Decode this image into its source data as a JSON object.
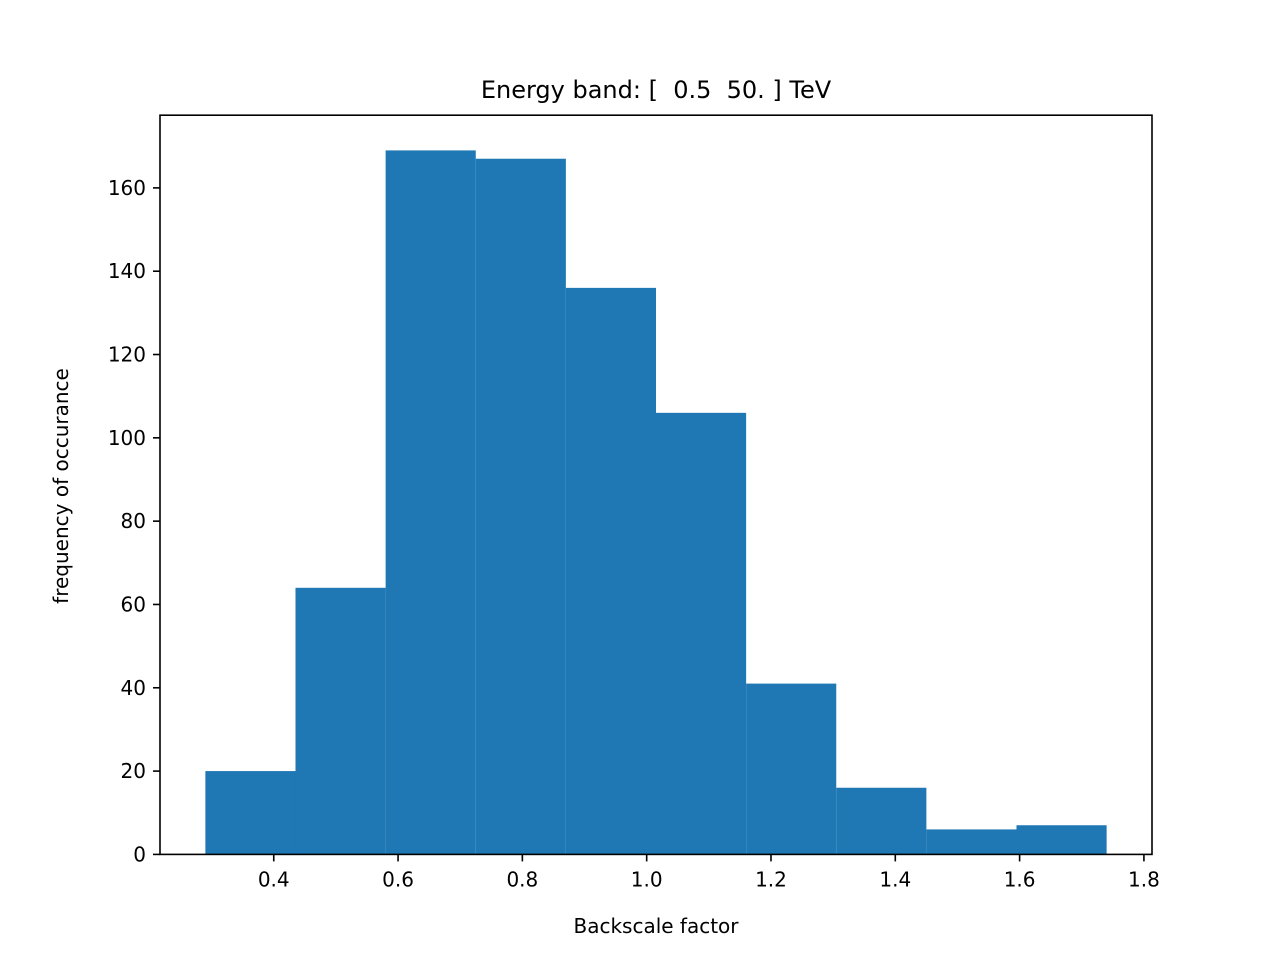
{
  "chart_data": {
    "type": "bar",
    "title": "Energy band: [  0.5  50. ] TeV",
    "xlabel": "Backscale factor",
    "ylabel": "frequency of occurance",
    "bin_edges": [
      0.29,
      0.435,
      0.58,
      0.725,
      0.87,
      1.015,
      1.16,
      1.305,
      1.45,
      1.595,
      1.74
    ],
    "values": [
      20,
      64,
      169,
      167,
      136,
      106,
      41,
      16,
      6,
      7
    ],
    "xlim": [
      0.217,
      1.813
    ],
    "ylim": [
      0,
      177.45
    ],
    "x_ticks": [
      0.4,
      0.6,
      0.8,
      1.0,
      1.2,
      1.4,
      1.6,
      1.8
    ],
    "x_tick_labels": [
      "0.4",
      "0.6",
      "0.8",
      "1.0",
      "1.2",
      "1.4",
      "1.6",
      "1.8"
    ],
    "y_ticks": [
      0,
      20,
      40,
      60,
      80,
      100,
      120,
      140,
      160
    ],
    "y_tick_labels": [
      "0",
      "20",
      "40",
      "60",
      "80",
      "100",
      "120",
      "140",
      "160"
    ],
    "bar_color": "#1f77b4",
    "grid": false,
    "legend": false
  }
}
